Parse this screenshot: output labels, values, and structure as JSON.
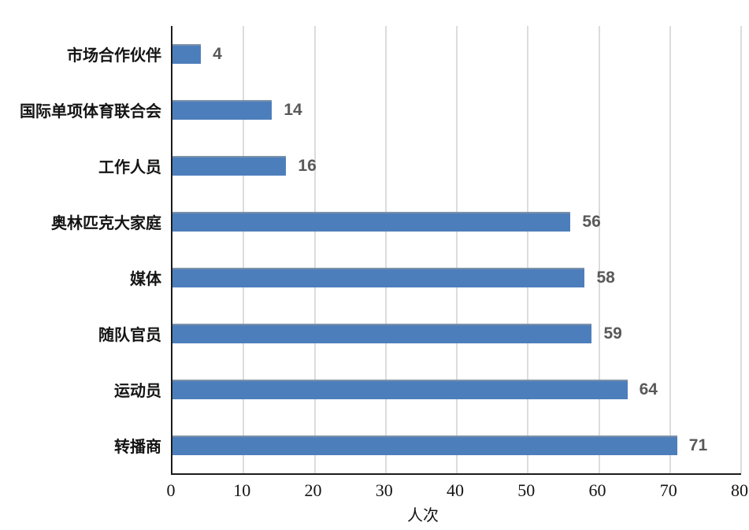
{
  "chart_data": {
    "type": "bar",
    "orientation": "horizontal",
    "title": "",
    "categories": [
      "市场合作伙伴",
      "国际单项体育联合会",
      "工作人员",
      "奥林匹克大家庭",
      "媒体",
      "随队官员",
      "运动员",
      "转播商"
    ],
    "values": [
      4,
      14,
      16,
      56,
      58,
      59,
      64,
      71
    ],
    "xlabel": "人次",
    "ylabel": "",
    "xlim": [
      0,
      80
    ],
    "xticks": [
      0,
      10,
      20,
      30,
      40,
      50,
      60,
      70,
      80
    ],
    "grid": true,
    "legend_position": "none",
    "colors": {
      "background": "#ffffff",
      "bar_fill": "#4d7ebc",
      "bar_edge": "#7d92a8",
      "gridline": "#dcdcdc",
      "axis_line": "#1c1c1c",
      "value_label": "#595959",
      "category_label": "#141414",
      "tick_label": "#141414"
    }
  }
}
